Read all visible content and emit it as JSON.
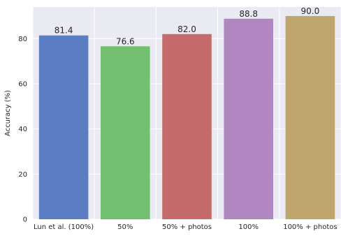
{
  "chart_data": {
    "type": "bar",
    "categories": [
      "Lun et al. (100%)",
      "50%",
      "50% + photos",
      "100%",
      "100% + photos"
    ],
    "values": [
      81.4,
      76.6,
      82.0,
      88.8,
      90.0
    ],
    "data_labels": [
      "81.4",
      "76.6",
      "82.0",
      "88.8",
      "90.0"
    ],
    "colors": [
      "#5a7dc4",
      "#73bf70",
      "#c66b6b",
      "#b087c0",
      "#bfa56e"
    ],
    "background": "#eaeaf2",
    "grid_color": "#ffffff",
    "grid": true,
    "title": "",
    "xlabel": "",
    "ylabel": "Accuracy (%)",
    "ylim": [
      0,
      94
    ],
    "yticks": [
      0,
      20,
      40,
      60,
      80
    ],
    "ytick_labels": [
      "0",
      "20",
      "40",
      "60",
      "80"
    ]
  }
}
